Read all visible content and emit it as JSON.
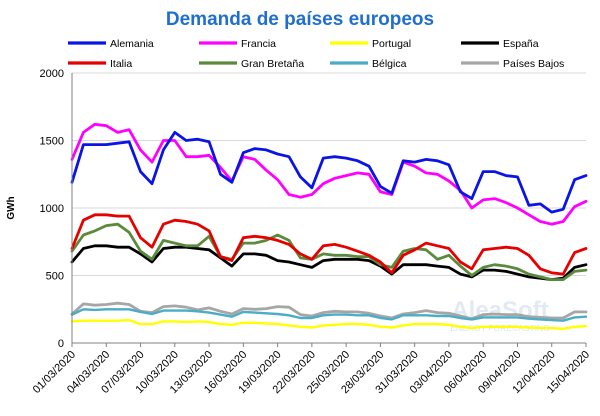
{
  "chart_data": {
    "type": "line",
    "title": "Demanda de países europeos",
    "ylabel": "GWh",
    "xlabel": "",
    "ylim": [
      0,
      2000
    ],
    "yticks": [
      0,
      500,
      1000,
      1500,
      2000
    ],
    "grid": true,
    "legend_position": "top",
    "x": [
      "01/03/2020",
      "02/03/2020",
      "03/03/2020",
      "04/03/2020",
      "05/03/2020",
      "06/03/2020",
      "07/03/2020",
      "08/03/2020",
      "09/03/2020",
      "10/03/2020",
      "11/03/2020",
      "12/03/2020",
      "13/03/2020",
      "14/03/2020",
      "15/03/2020",
      "16/03/2020",
      "17/03/2020",
      "18/03/2020",
      "19/03/2020",
      "20/03/2020",
      "21/03/2020",
      "22/03/2020",
      "23/03/2020",
      "24/03/2020",
      "25/03/2020",
      "26/03/2020",
      "27/03/2020",
      "28/03/2020",
      "29/03/2020",
      "30/03/2020",
      "31/03/2020",
      "01/04/2020",
      "02/04/2020",
      "03/04/2020",
      "04/04/2020",
      "05/04/2020",
      "06/04/2020",
      "07/04/2020",
      "08/04/2020",
      "09/04/2020",
      "10/04/2020",
      "11/04/2020",
      "12/04/2020",
      "13/04/2020",
      "14/04/2020",
      "15/04/2020"
    ],
    "xtick_labels": [
      "01/03/2020",
      "04/03/2020",
      "07/03/2020",
      "10/03/2020",
      "13/03/2020",
      "16/03/2020",
      "19/03/2020",
      "22/03/2020",
      "25/03/2020",
      "28/03/2020",
      "31/03/2020",
      "03/04/2020",
      "06/04/2020",
      "09/04/2020",
      "12/04/2020",
      "15/04/2020"
    ],
    "series": [
      {
        "name": "Alemania",
        "color": "#0a14e6",
        "width": 2.8,
        "values": [
          1190,
          1470,
          1470,
          1470,
          1480,
          1490,
          1270,
          1180,
          1430,
          1560,
          1500,
          1510,
          1490,
          1250,
          1190,
          1410,
          1440,
          1430,
          1400,
          1380,
          1230,
          1150,
          1370,
          1380,
          1370,
          1350,
          1310,
          1160,
          1110,
          1350,
          1340,
          1360,
          1350,
          1320,
          1120,
          1070,
          1270,
          1270,
          1240,
          1230,
          1020,
          1030,
          970,
          990,
          1210,
          1240
        ]
      },
      {
        "name": "Francia",
        "color": "#ff00ff",
        "width": 2.8,
        "values": [
          1360,
          1560,
          1620,
          1610,
          1560,
          1580,
          1430,
          1340,
          1500,
          1500,
          1380,
          1380,
          1390,
          1300,
          1200,
          1380,
          1360,
          1280,
          1210,
          1100,
          1080,
          1100,
          1180,
          1220,
          1240,
          1260,
          1250,
          1120,
          1100,
          1340,
          1310,
          1260,
          1250,
          1200,
          1130,
          1000,
          1060,
          1070,
          1040,
          1000,
          950,
          900,
          880,
          900,
          1010,
          1050
        ]
      },
      {
        "name": "Portugal",
        "color": "#ffff00",
        "width": 2.4,
        "values": [
          160,
          165,
          165,
          165,
          165,
          170,
          140,
          140,
          160,
          160,
          155,
          160,
          155,
          140,
          135,
          150,
          150,
          145,
          140,
          130,
          120,
          115,
          130,
          135,
          140,
          140,
          135,
          120,
          115,
          130,
          140,
          140,
          140,
          135,
          120,
          110,
          120,
          120,
          120,
          120,
          115,
          110,
          110,
          105,
          120,
          125
        ]
      },
      {
        "name": "España",
        "color": "#000000",
        "width": 2.8,
        "values": [
          600,
          700,
          720,
          720,
          710,
          710,
          660,
          600,
          700,
          710,
          710,
          700,
          690,
          630,
          570,
          660,
          660,
          650,
          610,
          600,
          580,
          560,
          610,
          620,
          620,
          620,
          610,
          570,
          510,
          580,
          580,
          580,
          570,
          560,
          510,
          490,
          540,
          540,
          530,
          510,
          490,
          480,
          470,
          480,
          560,
          580
        ]
      },
      {
        "name": "Italia",
        "color": "#e60000",
        "width": 2.8,
        "values": [
          700,
          910,
          950,
          950,
          940,
          940,
          780,
          710,
          880,
          910,
          900,
          880,
          830,
          640,
          610,
          780,
          790,
          780,
          760,
          730,
          660,
          620,
          720,
          730,
          710,
          680,
          650,
          600,
          520,
          650,
          690,
          740,
          720,
          700,
          600,
          550,
          690,
          700,
          710,
          700,
          650,
          550,
          520,
          510,
          670,
          700
        ]
      },
      {
        "name": "Gran Bretaña",
        "color": "#5a8a3c",
        "width": 2.8,
        "values": [
          680,
          800,
          830,
          870,
          880,
          820,
          680,
          620,
          760,
          740,
          720,
          720,
          790,
          640,
          620,
          740,
          740,
          760,
          800,
          760,
          630,
          620,
          660,
          650,
          650,
          640,
          640,
          580,
          560,
          680,
          700,
          690,
          620,
          650,
          570,
          500,
          560,
          580,
          570,
          550,
          510,
          490,
          470,
          470,
          530,
          540
        ]
      },
      {
        "name": "Bélgica",
        "color": "#4bacc6",
        "width": 2.4,
        "values": [
          210,
          250,
          245,
          250,
          250,
          250,
          230,
          215,
          240,
          240,
          240,
          235,
          225,
          210,
          195,
          230,
          225,
          220,
          215,
          205,
          185,
          185,
          205,
          210,
          210,
          205,
          205,
          185,
          175,
          205,
          205,
          205,
          200,
          200,
          185,
          175,
          190,
          190,
          190,
          190,
          180,
          175,
          170,
          165,
          190,
          195
        ]
      },
      {
        "name": "Países Bajos",
        "color": "#a6a6a6",
        "width": 2.8,
        "values": [
          215,
          290,
          280,
          285,
          295,
          285,
          235,
          225,
          270,
          275,
          265,
          245,
          260,
          235,
          215,
          255,
          250,
          255,
          270,
          265,
          210,
          200,
          225,
          235,
          230,
          230,
          220,
          200,
          185,
          215,
          225,
          240,
          225,
          220,
          200,
          180,
          210,
          215,
          210,
          210,
          195,
          190,
          185,
          185,
          230,
          230
        ]
      }
    ]
  },
  "watermark": {
    "brand": "AleaSoft",
    "tagline": "ENERGY FORECASTING"
  }
}
